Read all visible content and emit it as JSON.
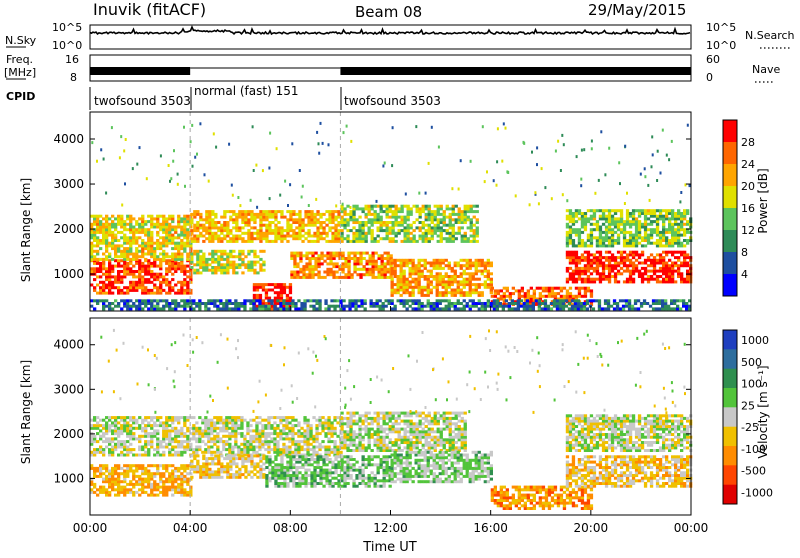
{
  "header": {
    "station": "Inuvik (fitACF)",
    "beam": "Beam 08",
    "date": "29/May/2015"
  },
  "top_panels": {
    "nsky_label": "N.Sky",
    "nsearch_label": "N.Search",
    "freq_label_1": "Freq.",
    "freq_label_2": "[MHz]",
    "nave_label": "Nave",
    "cpid_label": "CPID",
    "nsky_ticks": [
      "10^5",
      "10^0"
    ],
    "nsearch_ticks": [
      "10^5",
      "10^0"
    ],
    "freq_ticks": [
      "16",
      "8"
    ],
    "nave_ticks": [
      "60",
      "0"
    ]
  },
  "cpid_segments": [
    {
      "label": "twofsound 3503",
      "start": 0,
      "end": 4
    },
    {
      "label": "normal (fast) 151",
      "start": 4,
      "end": 10
    },
    {
      "label": "twofsound 3503",
      "start": 10,
      "end": 24
    }
  ],
  "colors": {
    "power": [
      "#0000ff",
      "#1e4fa0",
      "#2e8b57",
      "#5cc45c",
      "#e0e000",
      "#ffa500",
      "#ff6600",
      "#ff0000"
    ],
    "velocity": [
      "#1f3fbf",
      "#2e6e9e",
      "#2f8f4f",
      "#52c43a",
      "#c8c8c8",
      "#f0c000",
      "#ff8c00",
      "#ff4500",
      "#e00000"
    ]
  },
  "chart_data": [
    {
      "type": "heatmap",
      "title": "",
      "xlabel": "Time UT",
      "ylabel": "Slant Range [km]",
      "xlim": [
        0,
        24
      ],
      "ylim": [
        180,
        4600
      ],
      "xticks": [
        "00:00",
        "04:00",
        "08:00",
        "12:00",
        "16:00",
        "20:00",
        "00:00"
      ],
      "yticks": [
        "1000",
        "2000",
        "3000",
        "4000"
      ],
      "colorbar": {
        "label": "Power [dB]",
        "ticks": [
          "28",
          "24",
          "20",
          "16",
          "12",
          "8",
          "4"
        ],
        "range": [
          0,
          30
        ]
      },
      "regions": [
        {
          "t0": 0.0,
          "t1": 4.0,
          "r0": 550,
          "r1": 1300,
          "level": 26
        },
        {
          "t0": 0.0,
          "t1": 4.0,
          "r0": 1300,
          "r1": 2300,
          "level": 18
        },
        {
          "t0": 4.0,
          "t1": 7.0,
          "r0": 1000,
          "r1": 1500,
          "level": 17
        },
        {
          "t0": 4.0,
          "t1": 10.0,
          "r0": 1700,
          "r1": 2400,
          "level": 20
        },
        {
          "t0": 6.5,
          "t1": 8.0,
          "r0": 200,
          "r1": 800,
          "level": 28
        },
        {
          "t0": 8.0,
          "t1": 12.0,
          "r0": 900,
          "r1": 1500,
          "level": 22
        },
        {
          "t0": 10.0,
          "t1": 15.5,
          "r0": 1700,
          "r1": 2500,
          "level": 15
        },
        {
          "t0": 12.0,
          "t1": 16.0,
          "r0": 500,
          "r1": 1300,
          "level": 21
        },
        {
          "t0": 16.0,
          "t1": 20.0,
          "r0": 300,
          "r1": 700,
          "level": 24
        },
        {
          "t0": 19.0,
          "t1": 24.0,
          "r0": 800,
          "r1": 1500,
          "level": 27
        },
        {
          "t0": 19.0,
          "t1": 24.0,
          "r0": 1600,
          "r1": 2400,
          "level": 14
        },
        {
          "t0": 0.0,
          "t1": 24.0,
          "r0": 200,
          "r1": 400,
          "level": 7
        }
      ]
    },
    {
      "type": "heatmap",
      "title": "",
      "xlabel": "Time UT",
      "ylabel": "Slant Range [km]",
      "xlim": [
        0,
        24
      ],
      "ylim": [
        180,
        4600
      ],
      "xticks": [
        "00:00",
        "04:00",
        "08:00",
        "12:00",
        "16:00",
        "20:00",
        "00:00"
      ],
      "yticks": [
        "1000",
        "2000",
        "3000",
        "4000"
      ],
      "colorbar": {
        "label": "Velocity [m s⁻¹]",
        "ticks": [
          "1000",
          "500",
          "100",
          "25",
          "-25",
          "-100",
          "-500",
          "-1000"
        ],
        "range": [
          -1000,
          1000
        ]
      },
      "regions": [
        {
          "t0": 0.0,
          "t1": 4.0,
          "r0": 600,
          "r1": 1300,
          "level": -300
        },
        {
          "t0": 0.0,
          "t1": 10.0,
          "r0": 1500,
          "r1": 2400,
          "level": 0
        },
        {
          "t0": 4.0,
          "t1": 7.0,
          "r0": 1000,
          "r1": 1500,
          "level": -150
        },
        {
          "t0": 7.0,
          "t1": 12.0,
          "r0": 800,
          "r1": 1500,
          "level": 200
        },
        {
          "t0": 10.0,
          "t1": 15.0,
          "r0": 1600,
          "r1": 2500,
          "level": 10
        },
        {
          "t0": 12.0,
          "t1": 16.0,
          "r0": 900,
          "r1": 1600,
          "level": 150
        },
        {
          "t0": 16.0,
          "t1": 20.0,
          "r0": 300,
          "r1": 800,
          "level": -400
        },
        {
          "t0": 19.0,
          "t1": 24.0,
          "r0": 800,
          "r1": 1500,
          "level": -200
        },
        {
          "t0": 19.0,
          "t1": 24.0,
          "r0": 1600,
          "r1": 2400,
          "level": 0
        }
      ]
    }
  ]
}
